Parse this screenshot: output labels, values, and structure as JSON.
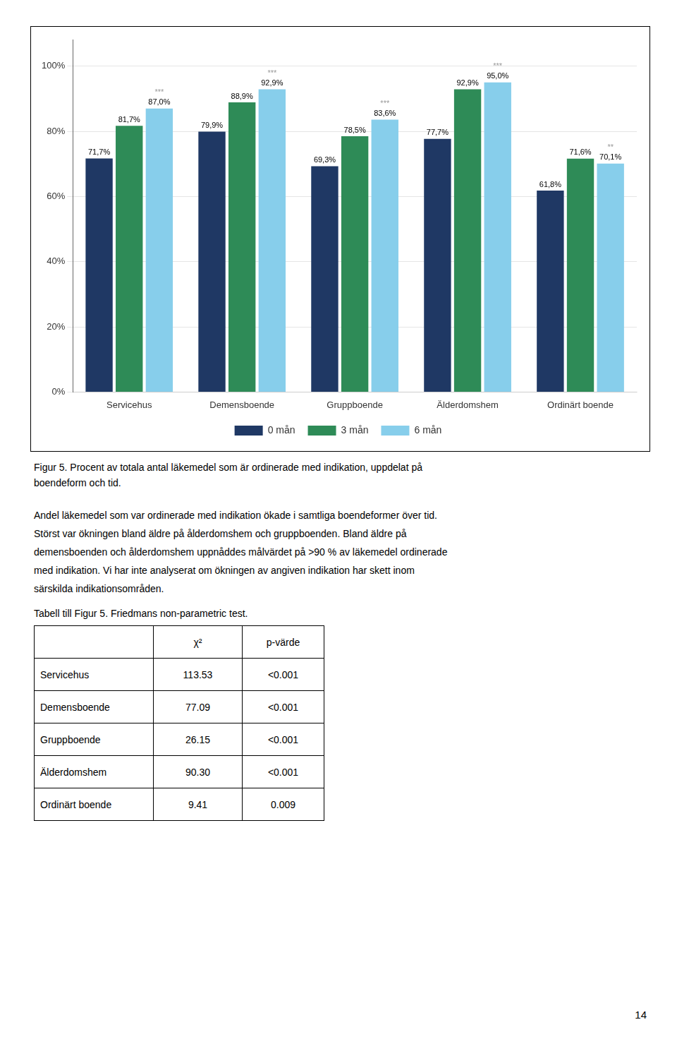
{
  "chart_data": {
    "type": "bar",
    "categories": [
      "Servicehus",
      "Demensboende",
      "Gruppboende",
      "Älderdomshem",
      "Ordinärt boende"
    ],
    "series": [
      {
        "name": "0 mån",
        "color": "#1F3864",
        "values": [
          71.7,
          79.9,
          69.3,
          77.7,
          61.8
        ],
        "value_labels": [
          "71,7%",
          "79,9%",
          "69,3%",
          "77,7%",
          "61,8%"
        ]
      },
      {
        "name": "3 mån",
        "color": "#2E8B57",
        "values": [
          81.7,
          88.9,
          78.5,
          92.9,
          71.6
        ],
        "value_labels": [
          "81,7%",
          "88,9%",
          "78,5%",
          "92,9%",
          "71,6%"
        ]
      },
      {
        "name": "6 mån",
        "color": "#87CEEB",
        "values": [
          87.0,
          92.9,
          83.6,
          95.0,
          70.1
        ],
        "value_labels": [
          "87,0%",
          "92,9%",
          "83,6%",
          "95,0%",
          "70,1%"
        ]
      }
    ],
    "ylim": [
      0,
      108
    ],
    "yticks": [
      {
        "value": 0,
        "label": "0%"
      },
      {
        "value": 20,
        "label": "20%"
      },
      {
        "value": 40,
        "label": "40%"
      },
      {
        "value": 60,
        "label": "60%"
      },
      {
        "value": 80,
        "label": "80%"
      },
      {
        "value": 100,
        "label": "100%"
      }
    ],
    "grid": true,
    "legend": "bottom",
    "data_labels": true,
    "annotations": [
      {
        "category": "Servicehus",
        "series": "6 mån",
        "text": "***"
      },
      {
        "category": "Demensboende",
        "series": "6 mån",
        "text": "***"
      },
      {
        "category": "Gruppboende",
        "series": "6 mån",
        "text": "***"
      },
      {
        "category": "Älderdomshem",
        "series": "6 mån",
        "text": "***"
      },
      {
        "category": "Ordinärt boende",
        "series": "6 mån",
        "text": "**"
      }
    ]
  },
  "caption": [
    "Figur 5. Procent av totala antal läkemedel som är ordinerade med indikation, uppdelat på",
    "boendeform och tid."
  ],
  "body_text": [
    "Andel läkemedel som var ordinerade med indikation ökade i samtliga boendeformer över tid.",
    "Störst var ökningen bland äldre på ålderdomshem och gruppboenden. Bland äldre på",
    "demensboenden och ålderdomshem uppnåddes målvärdet på >90 % av läkemedel ordinerade",
    "med indikation. Vi har inte analyserat om ökningen av angiven indikation har skett inom",
    "särskilda indikationsområden."
  ],
  "table": {
    "title": "Tabell till Figur 5. Friedmans non-parametric test.",
    "columns": [
      "χ²",
      "p-värde"
    ],
    "rows": [
      [
        "Servicehus",
        "113.53",
        "<0.001"
      ],
      [
        "Demensboende",
        "77.09",
        "<0.001"
      ],
      [
        "Gruppboende",
        "26.15",
        "<0.001"
      ],
      [
        "Älderdomshem",
        "90.30",
        "<0.001"
      ],
      [
        "Ordinärt boende",
        "9.41",
        "0.009"
      ]
    ]
  },
  "page_number": "14"
}
